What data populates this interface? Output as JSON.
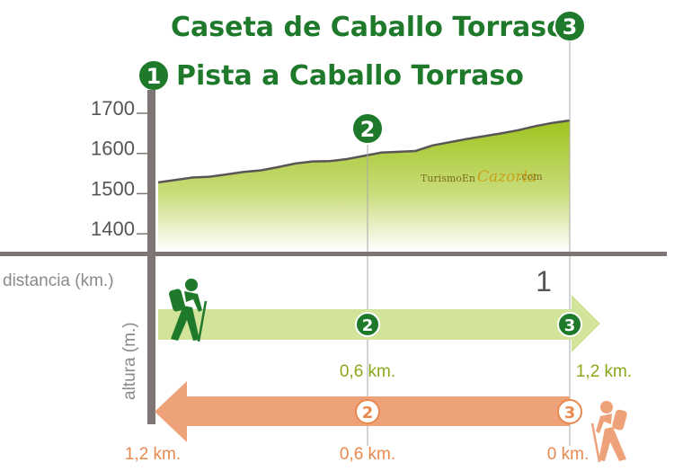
{
  "titles": {
    "destination": "Caseta de Caballo Torraso",
    "destination_badge": "3",
    "origin": "Pista a Caballo Torraso",
    "origin_badge": "1"
  },
  "waypoint_badge": "2",
  "brand": {
    "part1": "TurismoEn",
    "part2": "Cazorla",
    "part3": ".com"
  },
  "labels": {
    "distance_axis": "distancia (km.)",
    "altitude_axis": "altura (m.)",
    "distance_tick": "1"
  },
  "forward_route": {
    "markers": [
      "2",
      "3"
    ],
    "km_labels": [
      "0,6 km.",
      "1,2 km."
    ]
  },
  "return_route": {
    "markers": [
      "2",
      "3"
    ],
    "km_labels": [
      "1,2 km.",
      "0,6 km.",
      "0 km."
    ]
  },
  "colors": {
    "green_badge": "#1e7a2a",
    "fill_top": "#9ec41e",
    "green_arrow": "#d2e39a",
    "orange_arrow": "#eea279",
    "axis": "#7f7574"
  },
  "chart_data": {
    "type": "area",
    "title": "Caseta de Caballo Torraso",
    "xlabel": "distancia (km.)",
    "ylabel": "altura (m.)",
    "xlim": [
      0,
      1.2
    ],
    "ylim": [
      1360,
      1700
    ],
    "yticks": [
      1400,
      1500,
      1600,
      1700
    ],
    "xticks": [
      1
    ],
    "grid": false,
    "series": [
      {
        "x": [
          0,
          0.05,
          0.1,
          0.15,
          0.2,
          0.25,
          0.3,
          0.35,
          0.4,
          0.45,
          0.5,
          0.55,
          0.6,
          0.65,
          0.7,
          0.75,
          0.8,
          0.85,
          0.9,
          0.95,
          1.0,
          1.05,
          1.1,
          1.15,
          1.2
        ],
        "y": [
          1528,
          1534,
          1540,
          1542,
          1548,
          1554,
          1558,
          1566,
          1575,
          1580,
          1581,
          1586,
          1594,
          1602,
          1604,
          1606,
          1620,
          1628,
          1636,
          1643,
          1650,
          1658,
          1668,
          1676,
          1682
        ]
      }
    ],
    "waypoints": [
      {
        "label": "1",
        "x": 0
      },
      {
        "label": "2",
        "x": 0.6
      },
      {
        "label": "3",
        "x": 1.2
      }
    ]
  }
}
